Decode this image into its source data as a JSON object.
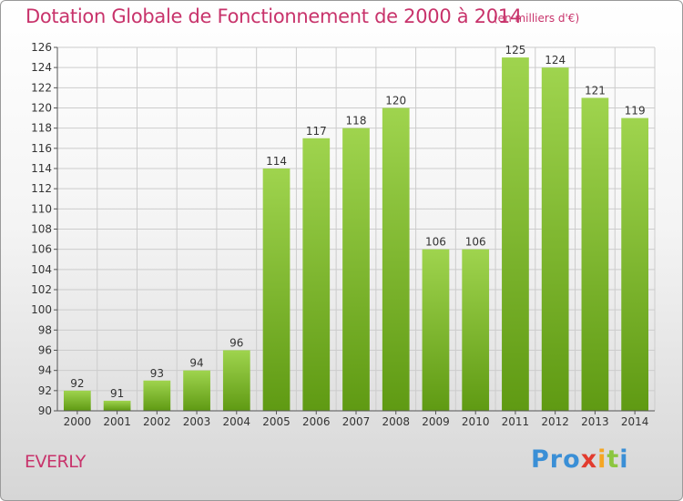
{
  "title": "Dotation Globale de Fonctionnement de 2000 à 2014",
  "subtitle": "(en milliers d'€)",
  "place": "EVERLY",
  "logo": {
    "letters": [
      "P",
      "r",
      "o",
      "x",
      "i",
      "t",
      "i"
    ],
    "colors": [
      "#3a8fd6",
      "#3a8fd6",
      "#3a8fd6",
      "#e23b2e",
      "#f5a623",
      "#8cc63f",
      "#3a8fd6"
    ]
  },
  "colors": {
    "bar_top": "#9fd44e",
    "bar_bottom": "#5f9a13",
    "grid": "#cccccc",
    "text_accent": "#c8336b"
  },
  "chart_data": {
    "type": "bar",
    "categories": [
      "2000",
      "2001",
      "2002",
      "2003",
      "2004",
      "2005",
      "2006",
      "2007",
      "2008",
      "2009",
      "2010",
      "2011",
      "2012",
      "2013",
      "2014"
    ],
    "values": [
      92,
      91,
      93,
      94,
      96,
      114,
      117,
      118,
      120,
      106,
      106,
      125,
      124,
      121,
      119
    ],
    "ylim": [
      90,
      126
    ],
    "yticks": [
      90,
      92,
      94,
      96,
      98,
      100,
      102,
      104,
      106,
      108,
      110,
      112,
      114,
      116,
      118,
      120,
      122,
      124,
      126
    ],
    "grid": true,
    "xlabel": "",
    "ylabel": ""
  }
}
